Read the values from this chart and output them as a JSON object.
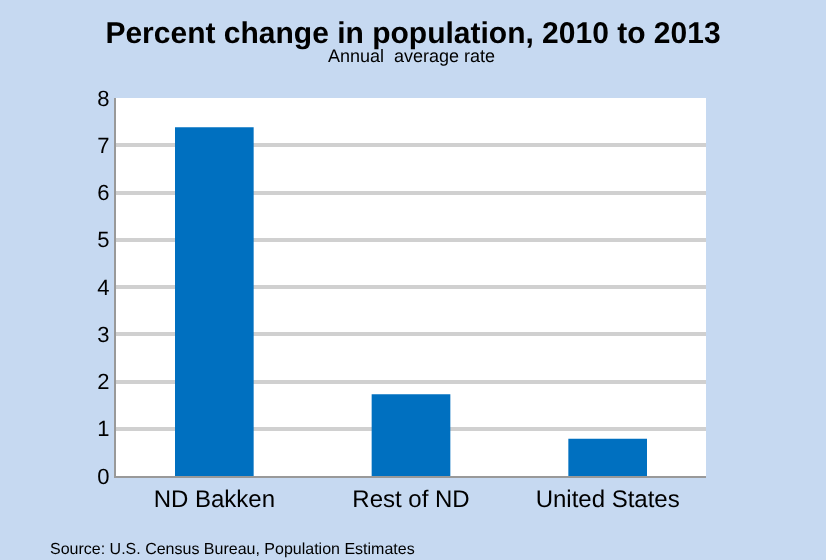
{
  "chart_data": {
    "type": "bar",
    "title": "Percent change in population, 2010 to 2013",
    "subtitle": "Annual  average rate",
    "categories": [
      "ND Bakken",
      "Rest of ND",
      "United States"
    ],
    "values": [
      7.38,
      1.73,
      0.79
    ],
    "color": "#0070c0",
    "ylim": [
      0,
      8
    ],
    "yticks": [
      0,
      1,
      2,
      3,
      4,
      5,
      6,
      7,
      8
    ],
    "grid": "y",
    "annotations": [
      "Source: U.S. Census Bureau, Population Estimates"
    ]
  }
}
